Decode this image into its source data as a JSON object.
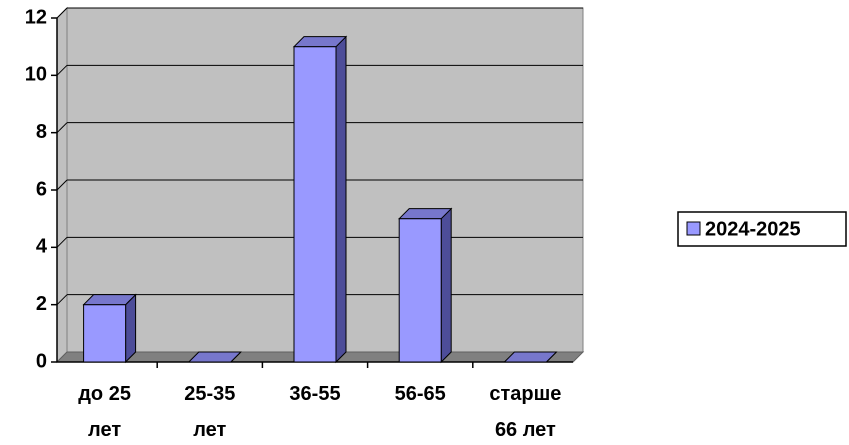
{
  "chart_data": {
    "type": "bar3d",
    "categories": [
      "до 25 лет",
      "25-35 лет",
      "36-55",
      "56-65",
      "старше 66 лет"
    ],
    "series": [
      {
        "name": "2024-2025",
        "color": "#9999ff",
        "values": [
          2,
          0,
          11,
          5,
          0
        ]
      }
    ],
    "ylim": [
      0,
      12
    ],
    "yticks": [
      0,
      2,
      4,
      6,
      8,
      10,
      12
    ],
    "grid": true,
    "legend": "right"
  }
}
